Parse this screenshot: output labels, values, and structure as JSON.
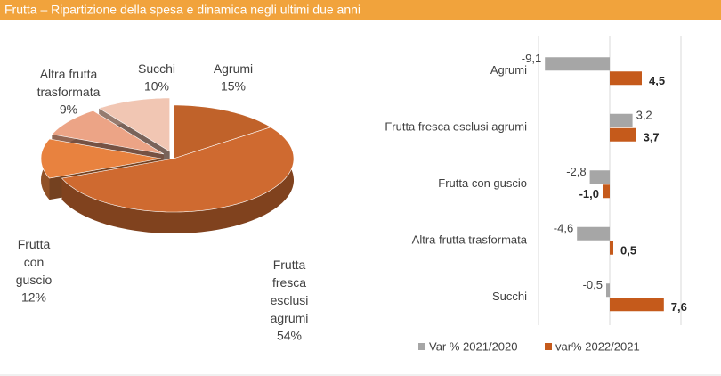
{
  "header": {
    "title": "Frutta – Ripartizione della spesa e dinamica negli ultimi due anni"
  },
  "chart_data": [
    {
      "type": "pie",
      "categories": [
        "Agrumi",
        "Frutta fresca esclusi agrumi",
        "Frutta con guscio",
        "Altra frutta trasformata",
        "Succhi"
      ],
      "values": [
        15,
        54,
        12,
        9,
        10
      ],
      "value_labels": [
        "15%",
        "54%",
        "12%",
        "9%",
        "10%"
      ],
      "colors": [
        "#c0622a",
        "#cf6a30",
        "#e8823f",
        "#eca486",
        "#f1c6b3"
      ]
    },
    {
      "type": "bar",
      "orientation": "horizontal",
      "categories": [
        "Agrumi",
        "Frutta fresca esclusi agrumi",
        "Frutta con guscio",
        "Altra frutta trasformata",
        "Succhi"
      ],
      "series": [
        {
          "name": "Var % 2021/2020",
          "color": "#a6a6a6",
          "values": [
            -9.1,
            3.2,
            -2.8,
            -4.6,
            -0.5
          ],
          "value_labels": [
            "-9,1",
            "3,2",
            "-2,8",
            "-4,6",
            "-0,5"
          ]
        },
        {
          "name": "var% 2022/2021",
          "color": "#c55a1b",
          "values": [
            4.5,
            3.7,
            -1.0,
            0.5,
            7.6
          ],
          "value_labels": [
            "4,5",
            "3,7",
            "-1,0",
            "0,5",
            "7,6"
          ]
        }
      ],
      "xlim": [
        -10,
        10
      ]
    }
  ]
}
